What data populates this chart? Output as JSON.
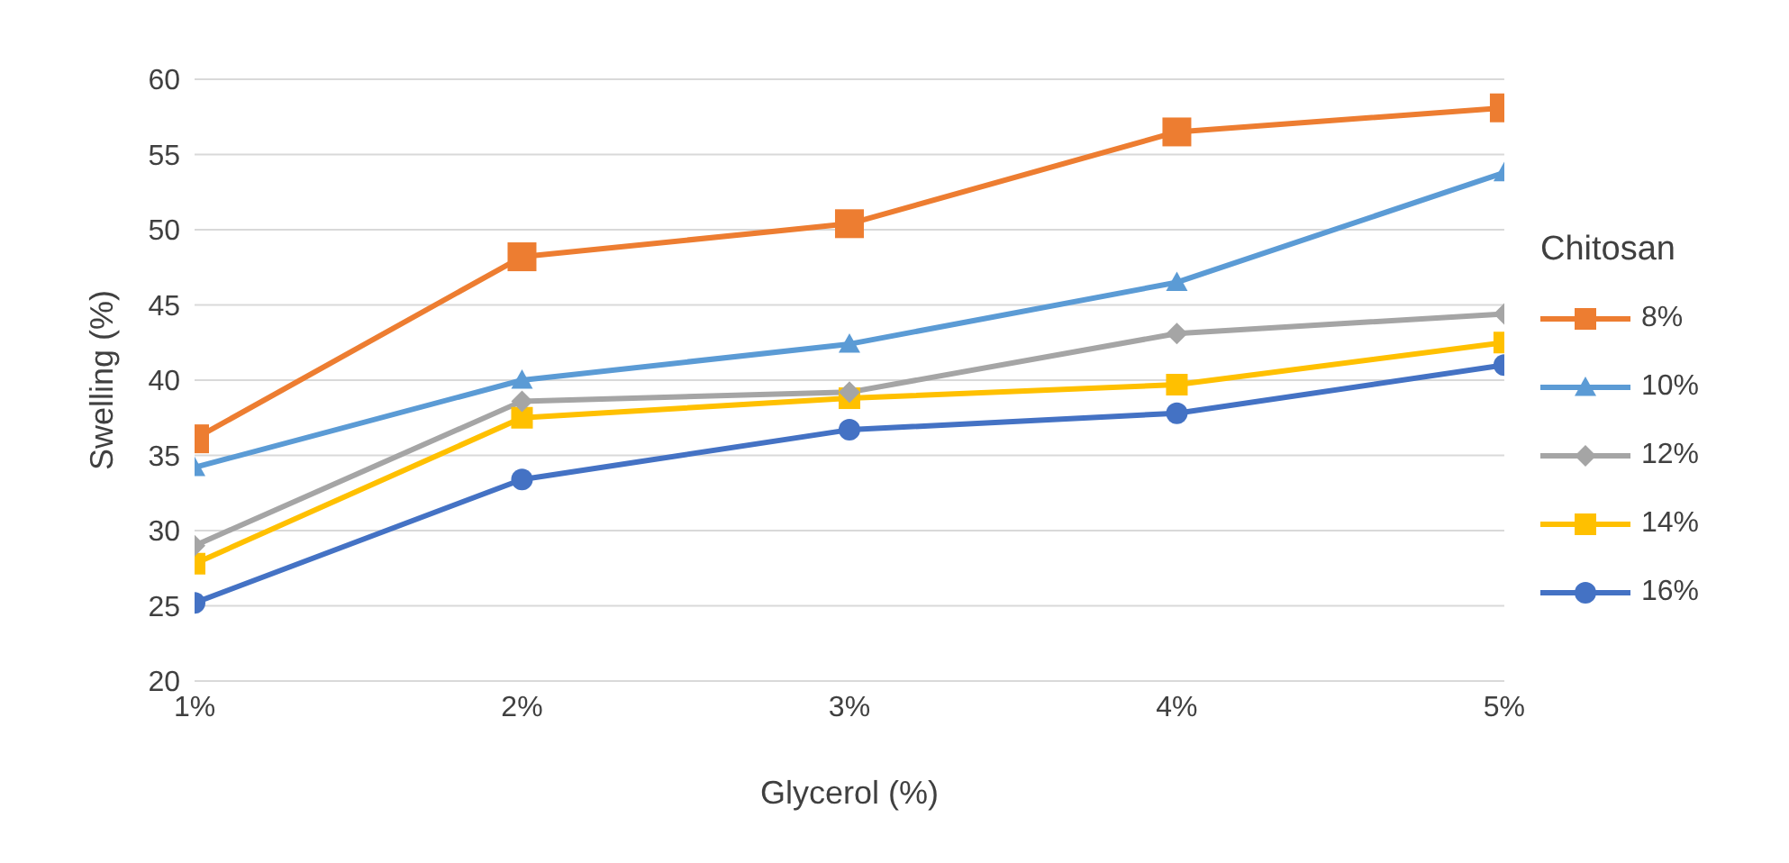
{
  "chart_data": {
    "type": "line",
    "xlabel": "Glycerol (%)",
    "ylabel": "Swelling (%)",
    "legend_title": "Chitosan",
    "categories": [
      "1%",
      "2%",
      "3%",
      "4%",
      "5%"
    ],
    "series": [
      {
        "name": "8%",
        "color": "#ed7d31",
        "marker": "square",
        "values": [
          36.1,
          48.2,
          50.4,
          56.5,
          58.1
        ]
      },
      {
        "name": "10%",
        "color": "#5b9bd5",
        "marker": "triangle",
        "values": [
          34.2,
          40,
          42.4,
          46.5,
          53.8
        ]
      },
      {
        "name": "12%",
        "color": "#a5a5a5",
        "marker": "diamond",
        "values": [
          29,
          38.6,
          39.2,
          43.1,
          44.4
        ]
      },
      {
        "name": "14%",
        "color": "#ffc000",
        "marker": "square",
        "values": [
          27.8,
          37.5,
          38.8,
          39.7,
          42.5
        ]
      },
      {
        "name": "16%",
        "color": "#4472c4",
        "marker": "circle",
        "values": [
          25.2,
          33.4,
          36.7,
          37.8,
          41
        ]
      }
    ],
    "ylim": [
      20,
      60
    ],
    "yticks": [
      20,
      25,
      30,
      35,
      40,
      45,
      50,
      55,
      60
    ],
    "grid": "y",
    "legend": "right",
    "line_style": "solid"
  }
}
